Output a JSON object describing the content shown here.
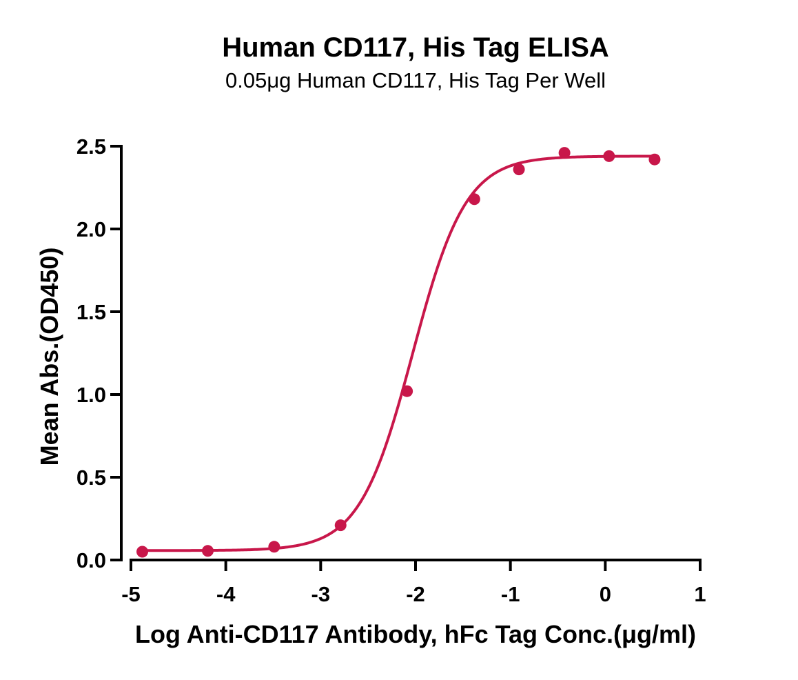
{
  "chart_data": {
    "type": "scatter",
    "title": "Human CD117, His Tag ELISA",
    "subtitle": "0.05μg Human CD117, His Tag Per Well",
    "xlabel": "Log Anti-CD117 Antibody, hFc Tag Conc.(μg/ml)",
    "ylabel": "Mean Abs.(OD450)",
    "xlim": [
      -5,
      1
    ],
    "ylim": [
      0,
      2.5
    ],
    "x_ticks": [
      "-5",
      "-4",
      "-3",
      "-2",
      "-1",
      "0",
      "1"
    ],
    "y_ticks": [
      "0.0",
      "0.5",
      "1.0",
      "1.5",
      "2.0",
      "2.5"
    ],
    "x_tick_values": [
      -5,
      -4,
      -3,
      -2,
      -1,
      0,
      1
    ],
    "y_tick_values": [
      0,
      0.5,
      1.0,
      1.5,
      2.0,
      2.5
    ],
    "color": "#C8174A",
    "series": [
      {
        "name": "Mean Abs.",
        "x": [
          -4.88,
          -4.19,
          -3.49,
          -2.79,
          -2.09,
          -1.38,
          -0.91,
          -0.43,
          0.04,
          0.52
        ],
        "y": [
          0.05,
          0.055,
          0.08,
          0.21,
          1.02,
          2.18,
          2.36,
          2.46,
          2.44,
          2.42
        ]
      }
    ],
    "fit": {
      "model": "4PL",
      "bottom": 0.057,
      "top": 2.44,
      "log_ec50": -2.03,
      "hill_slope": 1.55
    }
  }
}
